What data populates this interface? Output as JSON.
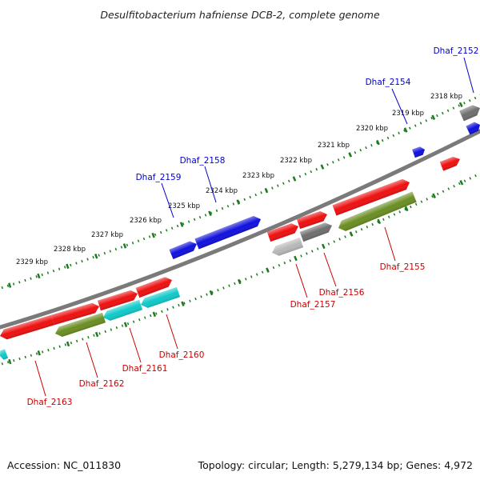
{
  "title": "Desulfitobacterium hafniense DCB-2, complete genome",
  "footer": {
    "accession": "Accession: NC_011830",
    "summary": "Topology: circular; Length: 5,279,134 bp; Genes: 4,972"
  },
  "colors": {
    "backbone": "#7a7a7a",
    "tick_dots": "#1f7a1f",
    "tick_major": "#1f7a1f",
    "label_forward": "#0000cc",
    "label_reverse": "#cc0000",
    "gene_red": "#ee1111",
    "gene_blue": "#1111dd",
    "gene_green": "#6b8e23",
    "gene_cyan": "#11c9c9",
    "gene_gray": "#6f6f6f",
    "gene_lightgray": "#b8b8b8"
  },
  "scale_labels": [
    "2318 kbp",
    "2319 kbp",
    "2320 kbp",
    "2321 kbp",
    "2322 kbp",
    "2323 kbp",
    "2324 kbp",
    "2325 kbp",
    "2326 kbp",
    "2327 kbp",
    "2328 kbp",
    "2329 kbp"
  ],
  "gene_labels": {
    "forward": [
      "Dhaf_2152",
      "Dhaf_2154",
      "Dhaf_2158",
      "Dhaf_2159"
    ],
    "reverse": [
      "Dhaf_2155",
      "Dhaf_2156",
      "Dhaf_2157",
      "Dhaf_2160",
      "Dhaf_2161",
      "Dhaf_2162",
      "Dhaf_2163"
    ]
  }
}
